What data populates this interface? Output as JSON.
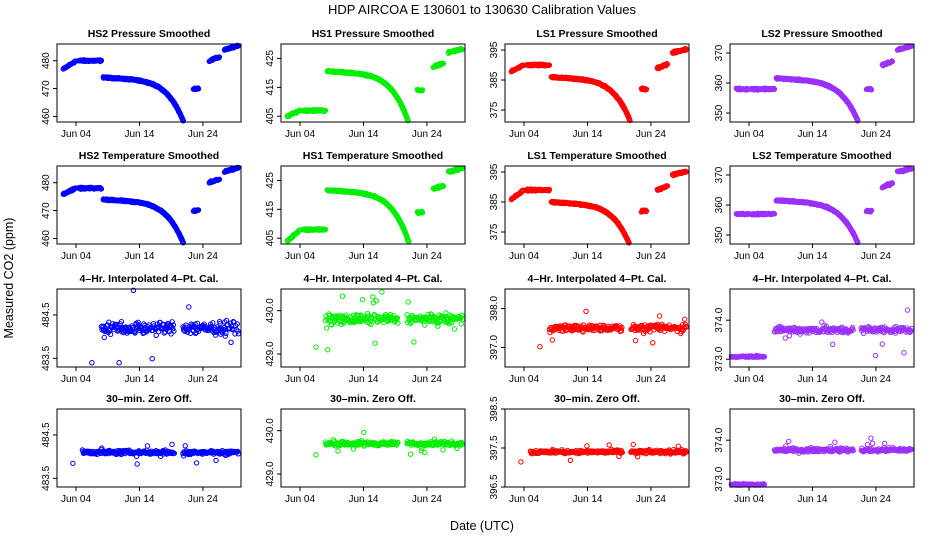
{
  "page": {
    "title": "HDP   AIRCOA E   130601 to 130630   Calibration Values",
    "xlabel": "Date (UTC)",
    "ylabel": "Measured CO2 (ppm)"
  },
  "x_axis": {
    "range_days": [
      1,
      30
    ],
    "ticks": [
      4,
      14,
      24
    ],
    "tick_labels": [
      "Jun 04",
      "Jun 14",
      "Jun 24"
    ]
  },
  "chart_data": [
    {
      "type": "scatter",
      "row": 0,
      "col": 0,
      "title": "HS2 Pressure Smoothed",
      "color": "#0000ff",
      "ylim": [
        458,
        486
      ],
      "yticks": [
        460,
        470,
        480
      ],
      "ytick_labels": [
        "460",
        "470",
        "480"
      ],
      "shape": "drift",
      "base": 474,
      "segA": [
        477,
        480
      ],
      "drop": 16,
      "late": [
        470,
        480,
        484
      ]
    },
    {
      "type": "scatter",
      "row": 0,
      "col": 1,
      "title": "HS1 Pressure Smoothed",
      "color": "#00ee00",
      "ylim": [
        403,
        430
      ],
      "yticks": [
        405,
        415,
        425
      ],
      "ytick_labels": [
        "405",
        "415",
        "425"
      ],
      "shape": "drift",
      "base": 420,
      "segA": [
        405,
        407
      ],
      "drop": 17,
      "late": [
        414,
        422,
        427
      ]
    },
    {
      "type": "scatter",
      "row": 0,
      "col": 2,
      "title": "LS1 Pressure Smoothed",
      "color": "#ff0000",
      "ylim": [
        371,
        397
      ],
      "yticks": [
        375,
        385,
        395
      ],
      "ytick_labels": [
        "375",
        "385",
        "395"
      ],
      "shape": "drift",
      "base": 386,
      "segA": [
        388,
        390
      ],
      "drop": 16,
      "late": [
        382,
        389,
        394
      ]
    },
    {
      "type": "scatter",
      "row": 0,
      "col": 3,
      "title": "LS2 Pressure Smoothed",
      "color": "#9b30ff",
      "ylim": [
        347,
        373
      ],
      "yticks": [
        350,
        360,
        370
      ],
      "ytick_labels": [
        "350",
        "360",
        "370"
      ],
      "shape": "drift",
      "base": 361,
      "segA": [
        358,
        358
      ],
      "drop": 13,
      "late": [
        358,
        366,
        371
      ]
    },
    {
      "type": "scatter",
      "row": 1,
      "col": 0,
      "title": "HS2 Temperature Smoothed",
      "color": "#0000ff",
      "ylim": [
        458,
        486
      ],
      "yticks": [
        460,
        470,
        480
      ],
      "ytick_labels": [
        "460",
        "470",
        "480"
      ],
      "shape": "drift",
      "base": 474,
      "segA": [
        476,
        478
      ],
      "drop": 16,
      "late": [
        470,
        480,
        484
      ]
    },
    {
      "type": "scatter",
      "row": 1,
      "col": 1,
      "title": "HS1 Temperature Smoothed",
      "color": "#00ee00",
      "ylim": [
        403,
        430
      ],
      "yticks": [
        405,
        415,
        425
      ],
      "ytick_labels": [
        "405",
        "415",
        "425"
      ],
      "shape": "drift",
      "base": 421,
      "segA": [
        404,
        408
      ],
      "drop": 17,
      "late": [
        414,
        422,
        428
      ]
    },
    {
      "type": "scatter",
      "row": 1,
      "col": 2,
      "title": "LS1 Temperature Smoothed",
      "color": "#ff0000",
      "ylim": [
        371,
        397
      ],
      "yticks": [
        375,
        385,
        395
      ],
      "ytick_labels": [
        "375",
        "385",
        "395"
      ],
      "shape": "drift",
      "base": 385,
      "segA": [
        386,
        389
      ],
      "drop": 16,
      "late": [
        382,
        389,
        394
      ]
    },
    {
      "type": "scatter",
      "row": 1,
      "col": 3,
      "title": "LS2 Temperature Smoothed",
      "color": "#9b30ff",
      "ylim": [
        347,
        373
      ],
      "yticks": [
        350,
        360,
        370
      ],
      "ytick_labels": [
        "350",
        "360",
        "370"
      ],
      "shape": "drift",
      "base": 361,
      "segA": [
        357,
        357
      ],
      "drop": 13,
      "late": [
        358,
        366,
        371
      ]
    },
    {
      "type": "scatter",
      "row": 2,
      "col": 0,
      "title": "4–Hr. Interpolated 4–Pt. Cal.",
      "color": "#0000ff",
      "ylim": [
        483.3,
        485.1
      ],
      "yticks": [
        483.5,
        484.5
      ],
      "ytick_labels": [
        "483.5",
        "484.5"
      ],
      "shape": "noise",
      "mean": 484.2,
      "spread": 0.25,
      "start": 8
    },
    {
      "type": "scatter",
      "row": 2,
      "col": 1,
      "title": "4–Hr. Interpolated 4–Pt. Cal.",
      "color": "#00ee00",
      "ylim": [
        428.7,
        430.5
      ],
      "yticks": [
        429.0,
        430.0
      ],
      "ytick_labels": [
        "429.0",
        "430.0"
      ],
      "shape": "noise",
      "mean": 429.8,
      "spread": 0.2,
      "start": 8
    },
    {
      "type": "scatter",
      "row": 2,
      "col": 2,
      "title": "4–Hr. Interpolated 4–Pt. Cal.",
      "color": "#ff0000",
      "ylim": [
        396.5,
        398.5
      ],
      "yticks": [
        397.0,
        398.0
      ],
      "ytick_labels": [
        "397.0",
        "398.0"
      ],
      "shape": "noise",
      "mean": 397.5,
      "spread": 0.15,
      "start": 8
    },
    {
      "type": "scatter",
      "row": 2,
      "col": 3,
      "title": "4–Hr. Interpolated 4–Pt. Cal.",
      "color": "#9b30ff",
      "ylim": [
        372.8,
        374.8
      ],
      "yticks": [
        373.0,
        374.0
      ],
      "ytick_labels": [
        "373.0",
        "374.0"
      ],
      "shape": "step",
      "low": 373.05,
      "mean": 373.75,
      "spread": 0.15,
      "stepday": 8
    },
    {
      "type": "scatter",
      "row": 3,
      "col": 0,
      "title": "30–min. Zero Off.",
      "color": "#0000ff",
      "ylim": [
        483.3,
        485.1
      ],
      "yticks": [
        483.5,
        484.5
      ],
      "ytick_labels": [
        "483.5",
        "484.5"
      ],
      "shape": "noise",
      "mean": 484.1,
      "spread": 0.08,
      "start": 5
    },
    {
      "type": "scatter",
      "row": 3,
      "col": 1,
      "title": "30–min. Zero Off.",
      "color": "#00ee00",
      "ylim": [
        428.7,
        430.5
      ],
      "yticks": [
        429.0,
        430.0
      ],
      "ytick_labels": [
        "429.0",
        "430.0"
      ],
      "shape": "noise",
      "mean": 429.7,
      "spread": 0.08,
      "start": 8
    },
    {
      "type": "scatter",
      "row": 3,
      "col": 2,
      "title": "30–min. Zero Off.",
      "color": "#ff0000",
      "ylim": [
        396.5,
        398.5
      ],
      "yticks": [
        396.5,
        397.5,
        398.5
      ],
      "ytick_labels": [
        "396.5",
        "397.5",
        "398.5"
      ],
      "shape": "noise",
      "mean": 397.4,
      "spread": 0.08,
      "start": 5
    },
    {
      "type": "scatter",
      "row": 3,
      "col": 3,
      "title": "30–min. Zero Off.",
      "color": "#9b30ff",
      "ylim": [
        372.8,
        374.8
      ],
      "yticks": [
        373.0,
        374.0
      ],
      "ytick_labels": [
        "373.0",
        "374.0"
      ],
      "shape": "step",
      "low": 372.85,
      "mean": 373.75,
      "spread": 0.08,
      "stepday": 8
    }
  ]
}
